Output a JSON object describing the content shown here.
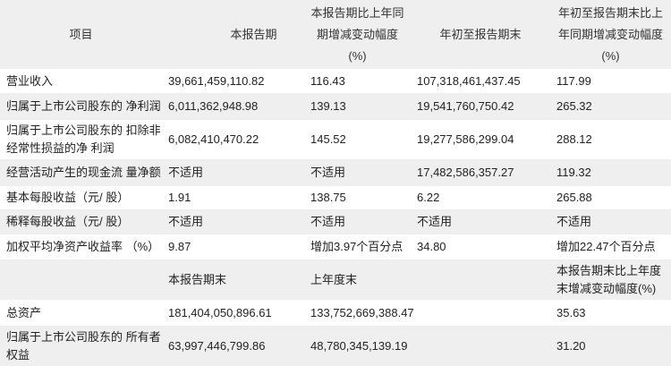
{
  "header": [
    "项目",
    "本报告期",
    "本报告期比上年同期增减变动幅度(%)",
    "年初至报告期末",
    "年初至报告期末比上年同期增减变动幅度(%)"
  ],
  "rows": [
    [
      "营业收入",
      "39,661,459,110.82",
      "116.43",
      "107,318,461,437.45",
      "117.99"
    ],
    [
      "归属于上市公司股东的 净利润",
      "6,011,362,948.98",
      "139.13",
      "19,541,760,750.42",
      "265.32"
    ],
    [
      "归属于上市公司股东的 扣除非经常性损益的净 利润",
      "6,082,410,470.22",
      "145.52",
      "19,277,586,299.04",
      "288.12"
    ],
    [
      "经营活动产生的现金流 量净额",
      "不适用",
      "不适用",
      "17,482,586,357.27",
      "119.32"
    ],
    [
      "基本每股收益（元/ 股）",
      "1.91",
      "138.75",
      "6.22",
      "265.88"
    ],
    [
      "稀释每股收益（元/ 股）",
      "不适用",
      "不适用",
      "不适用",
      "不适用"
    ],
    [
      "加权平均净资产收益率 （%）",
      "9.87",
      "增加3.97个百分点",
      "34.80",
      "增加22.47个百分点"
    ]
  ],
  "subheader": [
    "",
    "本报告期末",
    "上年度末",
    "",
    "本报告期末比上年度末增减变动幅度(%)"
  ],
  "rows2": [
    [
      "总资产",
      "181,404,050,896.61",
      "133,752,669,388.47",
      "",
      "35.63"
    ],
    [
      "归属于上市公司股东的 所有者权益",
      "63,997,446,799.86",
      "48,780,345,139.19",
      "",
      "31.20"
    ]
  ]
}
